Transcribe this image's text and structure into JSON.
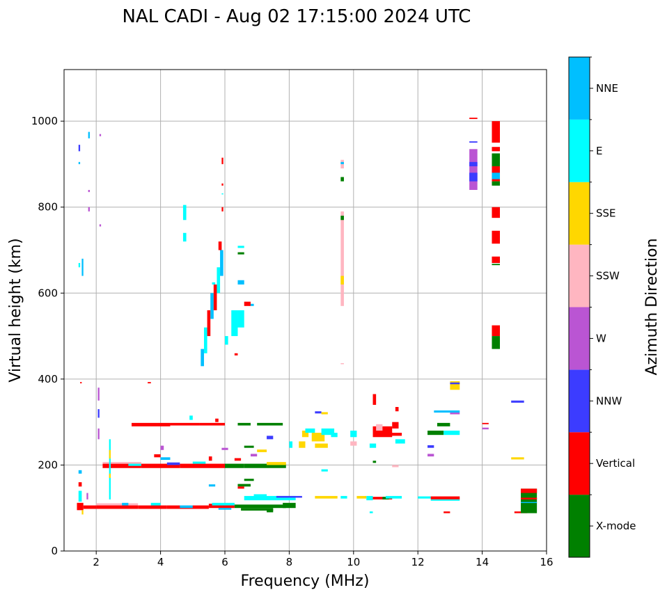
{
  "chart_data": {
    "type": "heatmap",
    "title": "NAL CADI - Aug 02 17:15:00 2024 UTC",
    "xlabel": "Frequency (MHz)",
    "ylabel": "Virtual height (km)",
    "xlim": [
      1,
      16
    ],
    "ylim": [
      0,
      1120
    ],
    "xticks": [
      2,
      4,
      6,
      8,
      10,
      12,
      14,
      16
    ],
    "yticks": [
      0,
      200,
      400,
      600,
      800,
      1000
    ],
    "grid": true,
    "colorbar": {
      "label": "Azimuth Direction",
      "categories": [
        "X-mode",
        "Vertical",
        "NNW",
        "W",
        "SSW",
        "SSE",
        "E",
        "NNE"
      ],
      "colors": [
        "#008000",
        "#ff0000",
        "#3c3cff",
        "#ba55d3",
        "#ffb6c1",
        "#ffd700",
        "#00ffff",
        "#00bfff"
      ]
    },
    "cells_note": "each cell: [freq_start_MHz, freq_end_MHz, height_start_km, height_end_km, category_index]",
    "cells": [
      [
        1.4,
        1.6,
        95,
        112,
        1
      ],
      [
        1.6,
        2.0,
        98,
        106,
        1
      ],
      [
        2.0,
        3.3,
        98,
        106,
        1
      ],
      [
        2.0,
        3.3,
        106,
        111,
        4
      ],
      [
        3.3,
        4.2,
        98,
        106,
        1
      ],
      [
        4.2,
        5.5,
        98,
        106,
        1
      ],
      [
        5.5,
        6.3,
        100,
        110,
        1
      ],
      [
        6.3,
        7.9,
        100,
        108,
        0
      ],
      [
        6.5,
        7.5,
        94,
        100,
        0
      ],
      [
        7.3,
        7.5,
        90,
        97,
        0
      ],
      [
        5.6,
        6.3,
        106,
        112,
        6
      ],
      [
        4.6,
        5.0,
        100,
        106,
        7
      ],
      [
        5.8,
        6.2,
        96,
        100,
        7
      ],
      [
        3.7,
        4.0,
        106,
        112,
        6
      ],
      [
        2.8,
        3.0,
        106,
        112,
        7
      ],
      [
        1.45,
        1.55,
        115,
        140,
        6
      ],
      [
        1.45,
        1.55,
        150,
        160,
        1
      ],
      [
        1.45,
        1.55,
        180,
        188,
        7
      ],
      [
        1.7,
        1.75,
        120,
        135,
        3
      ],
      [
        1.55,
        1.6,
        85,
        95,
        5
      ],
      [
        6.6,
        8.2,
        118,
        128,
        6
      ],
      [
        7.6,
        8.4,
        124,
        128,
        2
      ],
      [
        6.9,
        7.3,
        128,
        132,
        6
      ],
      [
        8.8,
        9.5,
        122,
        128,
        5
      ],
      [
        9.6,
        9.8,
        122,
        128,
        6
      ],
      [
        10.1,
        10.4,
        122,
        128,
        5
      ],
      [
        10.4,
        10.6,
        118,
        128,
        6
      ],
      [
        10.6,
        11.2,
        120,
        126,
        1
      ],
      [
        10.9,
        11.1,
        120,
        126,
        0
      ],
      [
        11.0,
        11.5,
        122,
        128,
        6
      ],
      [
        12.0,
        12.4,
        122,
        127,
        6
      ],
      [
        12.4,
        13.3,
        120,
        127,
        1
      ],
      [
        12.4,
        13.3,
        117,
        120,
        6
      ],
      [
        10.5,
        10.6,
        88,
        92,
        6
      ],
      [
        12.8,
        13.0,
        88,
        92,
        1
      ],
      [
        15.0,
        15.4,
        88,
        92,
        1
      ],
      [
        15.2,
        15.7,
        88,
        145,
        0
      ],
      [
        15.2,
        15.7,
        135,
        145,
        1
      ],
      [
        15.2,
        15.7,
        120,
        124,
        1
      ],
      [
        15.2,
        15.7,
        112,
        114,
        7
      ],
      [
        7.8,
        8.2,
        100,
        112,
        0
      ],
      [
        6.4,
        6.8,
        150,
        156,
        0
      ],
      [
        6.6,
        6.9,
        163,
        168,
        0
      ],
      [
        5.5,
        5.7,
        150,
        155,
        7
      ],
      [
        6.4,
        6.6,
        145,
        150,
        1
      ],
      [
        2.2,
        3.4,
        193,
        203,
        1
      ],
      [
        2.2,
        3.4,
        203,
        207,
        4
      ],
      [
        3.4,
        4.6,
        193,
        203,
        1
      ],
      [
        4.6,
        6.0,
        193,
        203,
        1
      ],
      [
        6.0,
        6.6,
        193,
        203,
        0
      ],
      [
        6.6,
        7.9,
        193,
        203,
        0
      ],
      [
        7.3,
        7.9,
        200,
        207,
        5
      ],
      [
        3.0,
        3.4,
        198,
        203,
        6
      ],
      [
        4.2,
        4.6,
        200,
        206,
        2
      ],
      [
        5.0,
        5.4,
        203,
        208,
        6
      ],
      [
        3.8,
        4.0,
        218,
        225,
        1
      ],
      [
        4.0,
        4.1,
        235,
        245,
        3
      ],
      [
        5.5,
        5.6,
        210,
        220,
        1
      ],
      [
        6.3,
        6.5,
        210,
        216,
        1
      ],
      [
        6.8,
        7.0,
        220,
        226,
        3
      ],
      [
        4.0,
        4.3,
        212,
        218,
        7
      ],
      [
        5.9,
        6.1,
        235,
        240,
        3
      ],
      [
        6.6,
        6.9,
        240,
        245,
        0
      ],
      [
        7.0,
        7.3,
        230,
        236,
        5
      ],
      [
        7.3,
        7.5,
        260,
        268,
        2
      ],
      [
        2.4,
        2.45,
        120,
        260,
        6
      ],
      [
        2.4,
        2.45,
        170,
        180,
        5
      ],
      [
        2.4,
        2.45,
        215,
        235,
        5
      ],
      [
        2.05,
        2.1,
        260,
        285,
        3
      ],
      [
        2.05,
        2.1,
        310,
        330,
        2
      ],
      [
        2.05,
        2.1,
        350,
        380,
        3
      ],
      [
        1.5,
        1.55,
        390,
        393,
        1
      ],
      [
        3.6,
        3.7,
        390,
        393,
        1
      ],
      [
        3.1,
        3.9,
        290,
        298,
        1
      ],
      [
        3.9,
        4.3,
        290,
        298,
        1
      ],
      [
        4.3,
        5.2,
        292,
        298,
        1
      ],
      [
        5.2,
        6.0,
        292,
        298,
        1
      ],
      [
        6.4,
        6.8,
        292,
        298,
        0
      ],
      [
        7.0,
        7.8,
        292,
        298,
        0
      ],
      [
        4.9,
        5.0,
        305,
        315,
        6
      ],
      [
        5.7,
        5.8,
        300,
        308,
        1
      ],
      [
        8.0,
        8.1,
        240,
        255,
        6
      ],
      [
        8.3,
        8.5,
        240,
        255,
        5
      ],
      [
        8.4,
        8.6,
        265,
        280,
        5
      ],
      [
        8.5,
        8.8,
        275,
        285,
        6
      ],
      [
        8.7,
        9.1,
        255,
        275,
        5
      ],
      [
        8.8,
        9.2,
        240,
        250,
        5
      ],
      [
        9.0,
        9.4,
        270,
        285,
        6
      ],
      [
        9.3,
        9.5,
        265,
        275,
        6
      ],
      [
        8.8,
        9.0,
        320,
        325,
        2
      ],
      [
        9.0,
        9.2,
        318,
        323,
        5
      ],
      [
        9.9,
        10.1,
        245,
        255,
        4
      ],
      [
        9.9,
        10.1,
        265,
        280,
        6
      ],
      [
        10.5,
        10.7,
        240,
        250,
        6
      ],
      [
        10.6,
        11.2,
        265,
        290,
        1
      ],
      [
        10.7,
        10.9,
        280,
        295,
        4
      ],
      [
        11.1,
        11.5,
        268,
        275,
        1
      ],
      [
        11.2,
        11.4,
        285,
        300,
        1
      ],
      [
        10.6,
        10.7,
        340,
        365,
        1
      ],
      [
        11.3,
        11.4,
        325,
        335,
        1
      ],
      [
        11.3,
        11.6,
        250,
        260,
        6
      ],
      [
        12.3,
        12.8,
        270,
        280,
        0
      ],
      [
        12.6,
        13.0,
        290,
        298,
        0
      ],
      [
        12.8,
        13.3,
        270,
        280,
        6
      ],
      [
        12.5,
        13.3,
        322,
        327,
        7
      ],
      [
        13.0,
        13.3,
        318,
        322,
        3
      ],
      [
        12.3,
        12.5,
        240,
        246,
        2
      ],
      [
        12.3,
        12.5,
        220,
        226,
        3
      ],
      [
        13.0,
        13.3,
        375,
        395,
        5
      ],
      [
        13.0,
        13.3,
        388,
        392,
        2
      ],
      [
        14.0,
        14.2,
        295,
        298,
        1
      ],
      [
        14.0,
        14.2,
        283,
        287,
        3
      ],
      [
        14.9,
        15.3,
        345,
        350,
        2
      ],
      [
        14.9,
        15.3,
        213,
        218,
        5
      ],
      [
        9.6,
        9.7,
        435,
        437,
        4
      ],
      [
        10.6,
        10.7,
        205,
        210,
        0
      ],
      [
        9.0,
        9.2,
        185,
        190,
        6
      ],
      [
        11.2,
        11.4,
        195,
        200,
        4
      ],
      [
        5.25,
        5.35,
        430,
        470,
        7
      ],
      [
        5.35,
        5.45,
        460,
        520,
        6
      ],
      [
        5.45,
        5.55,
        500,
        560,
        1
      ],
      [
        5.55,
        5.65,
        540,
        600,
        7
      ],
      [
        5.65,
        5.75,
        560,
        620,
        1
      ],
      [
        5.75,
        5.85,
        600,
        660,
        6
      ],
      [
        5.8,
        5.9,
        700,
        720,
        1
      ],
      [
        5.85,
        5.95,
        640,
        700,
        7
      ],
      [
        5.9,
        5.95,
        790,
        800,
        1
      ],
      [
        5.9,
        5.95,
        900,
        915,
        1
      ],
      [
        5.9,
        5.95,
        850,
        855,
        1
      ],
      [
        5.9,
        5.95,
        830,
        832,
        6
      ],
      [
        6.0,
        6.1,
        480,
        500,
        6
      ],
      [
        6.2,
        6.4,
        500,
        560,
        6
      ],
      [
        6.4,
        6.6,
        520,
        560,
        6
      ],
      [
        6.4,
        6.6,
        620,
        630,
        7
      ],
      [
        6.4,
        6.6,
        690,
        695,
        0
      ],
      [
        6.6,
        6.8,
        570,
        580,
        1
      ],
      [
        6.8,
        6.9,
        570,
        575,
        7
      ],
      [
        6.3,
        6.4,
        455,
        460,
        1
      ],
      [
        4.7,
        4.8,
        720,
        740,
        6
      ],
      [
        4.7,
        4.8,
        770,
        805,
        6
      ],
      [
        6.4,
        6.6,
        705,
        710,
        6
      ],
      [
        5.6,
        5.7,
        620,
        625,
        6
      ],
      [
        1.45,
        1.5,
        660,
        670,
        6
      ],
      [
        1.55,
        1.6,
        640,
        680,
        7
      ],
      [
        1.45,
        1.5,
        900,
        905,
        7
      ],
      [
        1.45,
        1.5,
        930,
        945,
        2
      ],
      [
        1.75,
        1.8,
        790,
        800,
        3
      ],
      [
        1.75,
        1.8,
        960,
        975,
        7
      ],
      [
        2.1,
        2.15,
        965,
        970,
        3
      ],
      [
        2.1,
        2.15,
        755,
        760,
        3
      ],
      [
        1.75,
        1.8,
        835,
        840,
        3
      ],
      [
        9.6,
        9.7,
        570,
        600,
        4
      ],
      [
        9.6,
        9.7,
        600,
        700,
        4
      ],
      [
        9.6,
        9.7,
        700,
        790,
        4
      ],
      [
        9.6,
        9.7,
        620,
        640,
        5
      ],
      [
        9.6,
        9.7,
        770,
        780,
        0
      ],
      [
        9.6,
        9.7,
        860,
        870,
        0
      ],
      [
        9.6,
        9.7,
        890,
        910,
        4
      ],
      [
        9.6,
        9.7,
        900,
        905,
        7
      ],
      [
        13.6,
        13.85,
        840,
        935,
        3
      ],
      [
        13.6,
        13.85,
        860,
        880,
        2
      ],
      [
        13.6,
        13.85,
        895,
        905,
        2
      ],
      [
        13.6,
        13.85,
        950,
        953,
        2
      ],
      [
        13.6,
        13.85,
        1005,
        1008,
        1
      ],
      [
        14.3,
        14.55,
        950,
        1000,
        1
      ],
      [
        14.3,
        14.55,
        930,
        940,
        1
      ],
      [
        14.3,
        14.55,
        895,
        925,
        0
      ],
      [
        14.3,
        14.55,
        860,
        895,
        1
      ],
      [
        14.3,
        14.55,
        850,
        860,
        0
      ],
      [
        14.3,
        14.55,
        865,
        880,
        7
      ],
      [
        14.3,
        14.55,
        775,
        800,
        1
      ],
      [
        14.3,
        14.55,
        715,
        745,
        1
      ],
      [
        14.3,
        14.55,
        670,
        685,
        1
      ],
      [
        14.3,
        14.55,
        665,
        668,
        0
      ],
      [
        14.3,
        14.55,
        500,
        525,
        1
      ],
      [
        14.3,
        14.55,
        470,
        500,
        0
      ]
    ]
  }
}
